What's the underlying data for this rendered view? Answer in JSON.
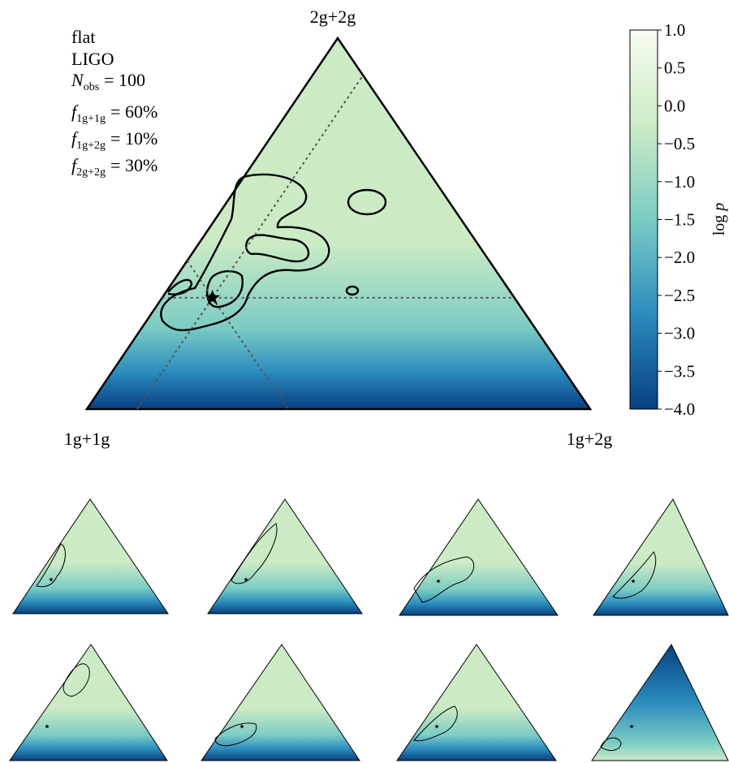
{
  "chart_data": {
    "type": "ternary",
    "corners": [
      "2g+2g",
      "1g+1g",
      "1g+2g"
    ],
    "annotations": [
      "flat",
      "LIGO"
    ],
    "n_obs": {
      "symbol": "N",
      "subscript": "obs",
      "label": "= 100"
    },
    "fractions": [
      {
        "symbol": "f",
        "subscript": "1g+1g",
        "label": "= 60%",
        "value": 60
      },
      {
        "symbol": "f",
        "subscript": "1g+2g",
        "label": "= 10%",
        "value": 10
      },
      {
        "symbol": "f",
        "subscript": "2g+2g",
        "label": "= 30%",
        "value": 30
      }
    ],
    "colorbar_label": "log",
    "colorbar_symbol": "p",
    "clim": [
      -4,
      1
    ],
    "cticks": [
      {
        "value": 1,
        "label": "1.0"
      },
      {
        "value": 0.5,
        "label": "0.5"
      },
      {
        "value": 0,
        "label": "0.0"
      },
      {
        "value": -0.5,
        "label": "−0.5"
      },
      {
        "value": -1,
        "label": "−1.0"
      },
      {
        "value": -1.5,
        "label": "−1.5"
      },
      {
        "value": -2,
        "label": "−2.0"
      },
      {
        "value": -2.5,
        "label": "−2.5"
      },
      {
        "value": -3,
        "label": "−3.0"
      },
      {
        "value": -3.5,
        "label": "−3.5"
      },
      {
        "value": -4,
        "label": "−4.0"
      }
    ],
    "colormap": [
      "#084081",
      "#2b8cbe",
      "#7bccc4",
      "#ccebc5",
      "#f7fcf0"
    ]
  }
}
